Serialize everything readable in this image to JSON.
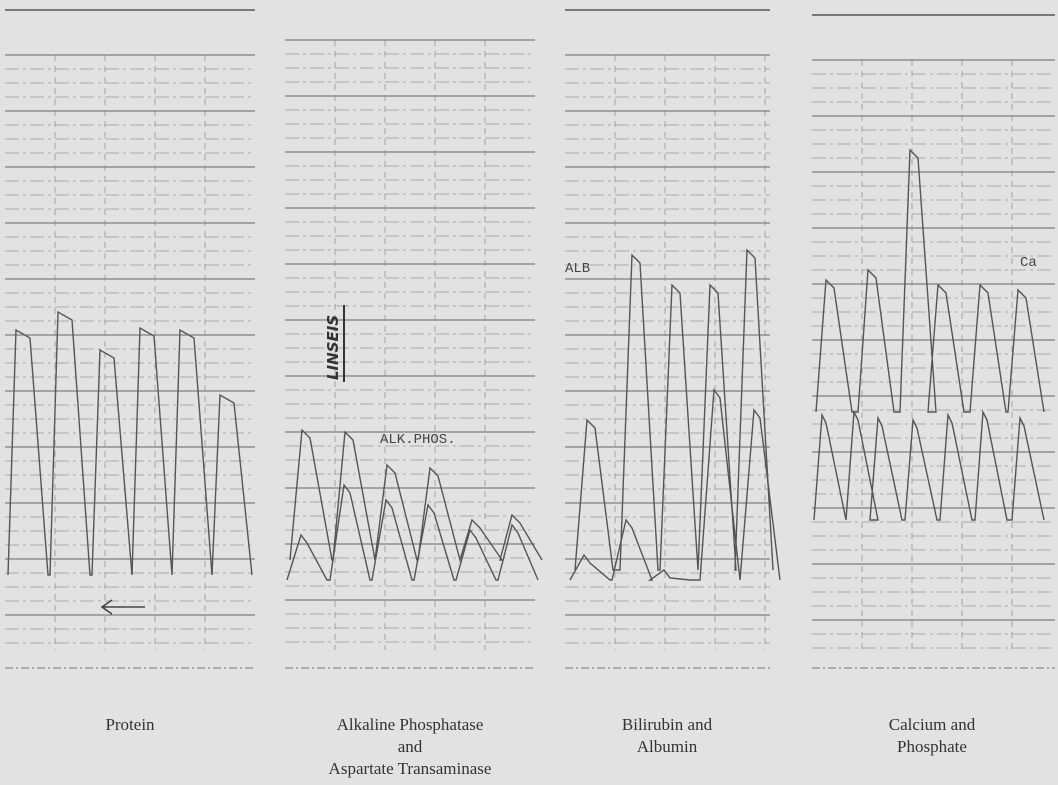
{
  "panels": [
    {
      "caption": [
        "Protein"
      ]
    },
    {
      "caption": [
        "Alkaline Phosphatase",
        "and",
        "Aspartate Transaminase"
      ],
      "annotations": [
        "LINSEIS",
        "ALK.PHOS."
      ]
    },
    {
      "caption": [
        "Bilirubin and",
        "Albumin"
      ],
      "annotations": [
        "ALB"
      ]
    },
    {
      "caption": [
        "Calcium and",
        "Phosphate"
      ],
      "annotations": [
        "Ca"
      ]
    }
  ]
}
